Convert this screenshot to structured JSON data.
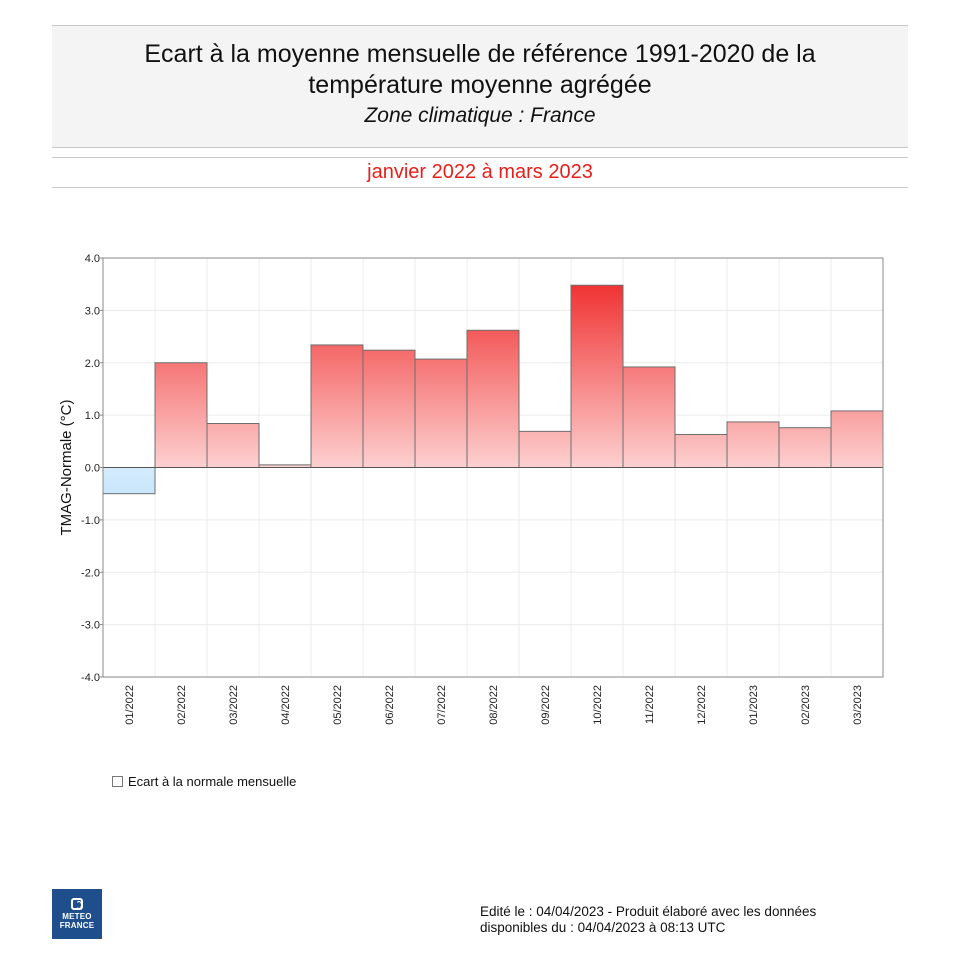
{
  "header": {
    "title_line1": "Ecart à la moyenne mensuelle de référence 1991-2020 de la",
    "title_line2": "température moyenne  agrégée",
    "subtitle": "Zone climatique : France",
    "period": "janvier 2022 à mars 2023"
  },
  "legend": {
    "label": "Ecart à la normale mensuelle"
  },
  "logo": {
    "line1": "METEO",
    "line2": "FRANCE"
  },
  "footer": {
    "line1": "Edité le : 04/04/2023 - Produit élaboré avec les données",
    "line2": "disponibles du : 04/04/2023 à 08:13 UTC"
  },
  "colors": {
    "positive_top": "#ee1c1c",
    "positive_bottom": "#fdd0d0",
    "negative_top": "#d4ecfd",
    "negative_bottom": "#bfe0fb",
    "bar_stroke": "#6e6e6e",
    "grid": "#ececec",
    "axis": "#888888",
    "period_text": "#e8201c"
  },
  "chart_data": {
    "type": "bar",
    "title": "Ecart à la moyenne mensuelle de référence 1991-2020 de la température moyenne agrégée",
    "subtitle": "Zone climatique : France",
    "xlabel": "",
    "ylabel": "TMAG-Normale (°C)",
    "ylim": [
      -4.0,
      4.0
    ],
    "yticks": [
      "-4.0",
      "-3.0",
      "-2.0",
      "-1.0",
      "0.0",
      "1.0",
      "2.0",
      "3.0",
      "4.0"
    ],
    "grid": true,
    "legend_position": "bottom-left",
    "categories": [
      "01/2022",
      "02/2022",
      "03/2022",
      "04/2022",
      "05/2022",
      "06/2022",
      "07/2022",
      "08/2022",
      "09/2022",
      "10/2022",
      "11/2022",
      "12/2022",
      "01/2023",
      "02/2023",
      "03/2023"
    ],
    "series": [
      {
        "name": "Ecart à la normale mensuelle",
        "values": [
          -0.5,
          2.0,
          0.84,
          0.05,
          2.34,
          2.24,
          2.07,
          2.62,
          0.69,
          3.48,
          1.92,
          0.63,
          0.87,
          0.76,
          1.08
        ]
      }
    ]
  }
}
